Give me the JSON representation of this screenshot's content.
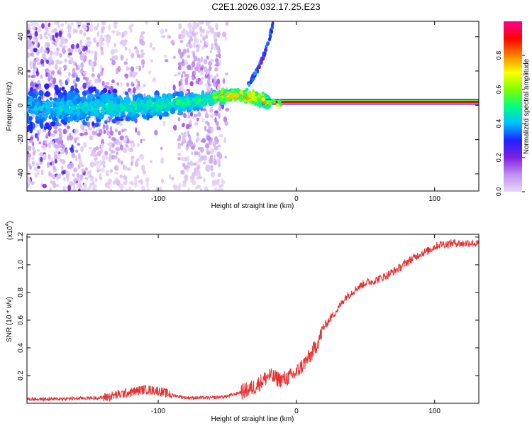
{
  "title": "C2E1.2026.032.17.25.E23",
  "chart_data": [
    {
      "type": "heatmap",
      "xlabel": "Height of straight line (km)",
      "ylabel": "Frequency (Hz)",
      "xlim": [
        -195,
        132
      ],
      "ylim": [
        -50,
        49
      ],
      "xticks": [
        -100,
        0,
        100
      ],
      "xtick_labels": [
        "-100",
        "0",
        "100"
      ],
      "yticks": [
        -40,
        -20,
        0,
        20,
        40
      ],
      "ytick_labels": [
        "-40",
        "-20",
        "0",
        "20",
        "40"
      ],
      "colorbar": {
        "label": "Normalized spectral amplitude",
        "range": [
          0,
          1
        ],
        "ticks": [
          0.0,
          0.2,
          0.4,
          0.6,
          0.8
        ],
        "tick_labels": [
          "0.0",
          "0.2",
          "0.4",
          "0.6",
          "0.8"
        ],
        "colors": [
          "#e8d8f8",
          "#c090f0",
          "#8020e0",
          "#2020ff",
          "#00c0ff",
          "#00ff80",
          "#80ff00",
          "#ffff00",
          "#ff8000",
          "#ff0000",
          "#ff0090"
        ]
      },
      "ridge": {
        "description_points_x": [
          -195,
          -150,
          -100,
          -60,
          -50,
          -40,
          -30,
          -20,
          -10,
          0,
          5,
          10,
          50,
          100,
          132
        ],
        "frequency": [
          -2,
          -1,
          0,
          4,
          6,
          6,
          5,
          2,
          1,
          1,
          1,
          2,
          2,
          2,
          2
        ]
      },
      "chirp_branch": {
        "x": [
          -35,
          -30,
          -25,
          -20,
          -17
        ],
        "frequency": [
          12,
          18,
          26,
          38,
          47
        ]
      }
    },
    {
      "type": "line",
      "xlabel": "Height of straight line (km)",
      "ylabel": "SNR (10 * v/v)",
      "y_scale_label": "(x10",
      "y_scale_exponent": "4",
      "xlim": [
        -195,
        132
      ],
      "ylim": [
        0,
        1.22
      ],
      "xticks": [
        -100,
        0,
        100
      ],
      "xtick_labels": [
        "-100",
        "0",
        "100"
      ],
      "yticks": [
        0.2,
        0.4,
        0.6,
        0.8,
        1.0,
        1.2
      ],
      "ytick_labels": [
        "0.2",
        "0.4",
        "0.6",
        "0.8",
        "1.0",
        "1.2"
      ],
      "series": [
        {
          "name": "SNR",
          "color": "#e83030",
          "x": [
            -195,
            -180,
            -160,
            -140,
            -130,
            -120,
            -110,
            -100,
            -90,
            -80,
            -70,
            -60,
            -50,
            -40,
            -30,
            -25,
            -20,
            -15,
            -10,
            -5,
            0,
            5,
            10,
            15,
            20,
            25,
            30,
            35,
            40,
            45,
            50,
            55,
            60,
            65,
            70,
            75,
            80,
            85,
            90,
            95,
            100,
            105,
            110,
            115,
            120,
            125,
            132
          ],
          "values": [
            0.03,
            0.03,
            0.035,
            0.04,
            0.06,
            0.08,
            0.1,
            0.09,
            0.06,
            0.04,
            0.04,
            0.04,
            0.05,
            0.08,
            0.12,
            0.16,
            0.2,
            0.18,
            0.17,
            0.19,
            0.22,
            0.28,
            0.34,
            0.43,
            0.55,
            0.62,
            0.68,
            0.76,
            0.8,
            0.84,
            0.87,
            0.88,
            0.9,
            0.92,
            0.95,
            0.98,
            1.02,
            1.05,
            1.08,
            1.1,
            1.13,
            1.15,
            1.15,
            1.16,
            1.15,
            1.16,
            1.15
          ]
        }
      ]
    }
  ]
}
